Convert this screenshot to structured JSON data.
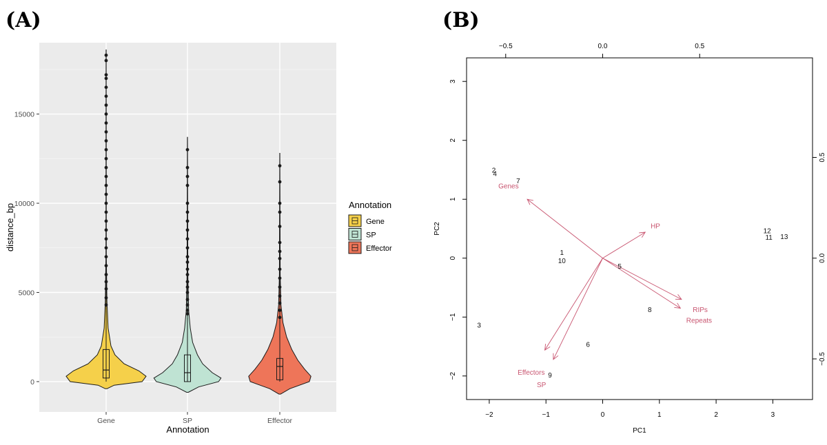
{
  "panels": {
    "a_label": "(A)",
    "b_label": "(B)"
  },
  "chart_data": [
    {
      "type": "violin",
      "title": "",
      "xlabel": "Annotation",
      "ylabel": "distance_bp",
      "categories": [
        "Gene",
        "SP",
        "Effector"
      ],
      "ylim": [
        -1700,
        19000
      ],
      "yticks": [
        0,
        5000,
        10000,
        15000
      ],
      "ytick_labels": [
        "0",
        "5000",
        "10000",
        "15000"
      ],
      "grid": true,
      "legend": {
        "title": "Annotation",
        "position": "right",
        "entries": [
          "Gene",
          "SP",
          "Effector"
        ]
      },
      "colors": {
        "Gene": "#f5d04a",
        "SP": "#bfe3d3",
        "Effector": "#ee7559"
      },
      "series": [
        {
          "name": "Gene",
          "box": {
            "q1": 200,
            "median": 650,
            "q3": 1800,
            "whisker_low": 0,
            "whisker_high": 4000
          },
          "violin": [
            [
              -400,
              0.02
            ],
            [
              -200,
              0.2
            ],
            [
              0,
              0.9
            ],
            [
              300,
              1.0
            ],
            [
              600,
              0.82
            ],
            [
              1000,
              0.45
            ],
            [
              1500,
              0.22
            ],
            [
              2000,
              0.12
            ],
            [
              3000,
              0.05
            ],
            [
              4500,
              0.02
            ],
            [
              7000,
              0.006
            ],
            [
              18600,
              0.002
            ]
          ],
          "outliers": [
            4300,
            4700,
            5200,
            5600,
            6000,
            6500,
            7000,
            7500,
            8000,
            8500,
            9000,
            9500,
            10000,
            10500,
            11000,
            11500,
            12000,
            12500,
            13000,
            13500,
            14000,
            14500,
            15000,
            15500,
            16000,
            16500,
            17000,
            17200,
            18000,
            18300
          ]
        },
        {
          "name": "SP",
          "box": {
            "q1": 0,
            "median": 500,
            "q3": 1500,
            "whisker_low": 0,
            "whisker_high": 3600
          },
          "violin": [
            [
              -600,
              0.02
            ],
            [
              -300,
              0.28
            ],
            [
              0,
              0.78
            ],
            [
              200,
              0.84
            ],
            [
              500,
              0.62
            ],
            [
              1000,
              0.38
            ],
            [
              1500,
              0.25
            ],
            [
              2200,
              0.13
            ],
            [
              3000,
              0.07
            ],
            [
              4000,
              0.03
            ],
            [
              6000,
              0.01
            ],
            [
              13700,
              0.002
            ]
          ],
          "outliers": [
            3800,
            4000,
            4300,
            4600,
            5000,
            5300,
            5600,
            6000,
            6300,
            6700,
            7000,
            7500,
            8000,
            8500,
            9000,
            9500,
            10000,
            11000,
            11500,
            12000,
            13000
          ]
        },
        {
          "name": "Effector",
          "box": {
            "q1": 100,
            "median": 850,
            "q3": 1300,
            "whisker_low": 0,
            "whisker_high": 3300
          },
          "violin": [
            [
              -700,
              0.02
            ],
            [
              -400,
              0.25
            ],
            [
              0,
              0.74
            ],
            [
              300,
              0.78
            ],
            [
              700,
              0.62
            ],
            [
              1200,
              0.45
            ],
            [
              1800,
              0.3
            ],
            [
              2500,
              0.17
            ],
            [
              3300,
              0.08
            ],
            [
              4300,
              0.03
            ],
            [
              6000,
              0.01
            ],
            [
              12800,
              0.002
            ]
          ],
          "outliers": [
            3600,
            4000,
            4400,
            4800,
            5300,
            5800,
            6300,
            6900,
            7300,
            7800,
            8700,
            9500,
            10000,
            11200,
            12100
          ]
        }
      ]
    },
    {
      "type": "scatter",
      "subtype": "biplot",
      "title": "",
      "xlabel": "PC1",
      "ylabel": "PC2",
      "xlim": [
        -2.4,
        3.7
      ],
      "ylim": [
        -2.4,
        3.4
      ],
      "xticks": [
        -2,
        -1,
        0,
        1,
        2,
        3
      ],
      "xtick_labels": [
        "−2",
        "−1",
        "0",
        "1",
        "2",
        "3"
      ],
      "yticks": [
        -2,
        -1,
        0,
        1,
        2,
        3
      ],
      "ytick_labels": [
        "−2",
        "−1",
        "0",
        "1",
        "2",
        "3"
      ],
      "top_xticks": [
        -0.5,
        0,
        0.5
      ],
      "top_xtick_labels": [
        "−0.5",
        "0.0",
        "0.5"
      ],
      "right_yticks": [
        -0.5,
        0,
        0.5
      ],
      "right_ytick_labels": [
        "−0.5",
        "0.0",
        "0.5"
      ],
      "points": [
        {
          "label": "2",
          "x": -1.92,
          "y": 1.5
        },
        {
          "label": "4",
          "x": -1.9,
          "y": 1.44
        },
        {
          "label": "7",
          "x": -1.49,
          "y": 1.32
        },
        {
          "label": "1",
          "x": -0.72,
          "y": 0.1
        },
        {
          "label": "10",
          "x": -0.72,
          "y": -0.04
        },
        {
          "label": "5",
          "x": 0.3,
          "y": -0.13
        },
        {
          "label": "8",
          "x": 0.83,
          "y": -0.87
        },
        {
          "label": "6",
          "x": -0.26,
          "y": -1.46
        },
        {
          "label": "9",
          "x": -0.93,
          "y": -1.98
        },
        {
          "label": "3",
          "x": -2.18,
          "y": -1.13
        },
        {
          "label": "12",
          "x": 2.9,
          "y": 0.47
        },
        {
          "label": "11",
          "x": 2.93,
          "y": 0.36
        },
        {
          "label": "13",
          "x": 3.2,
          "y": 0.37
        }
      ],
      "loadings": [
        {
          "label": "Genes",
          "x": -1.33,
          "y": 1.0,
          "lx": -1.66,
          "ly": 1.23
        },
        {
          "label": "HP",
          "x": 0.75,
          "y": 0.44,
          "lx": 0.93,
          "ly": 0.55
        },
        {
          "label": "RIPs",
          "x": 1.39,
          "y": -0.7,
          "lx": 1.72,
          "ly": -0.87
        },
        {
          "label": "Repeats",
          "x": 1.37,
          "y": -0.85,
          "lx": 1.7,
          "ly": -1.05
        },
        {
          "label": "Effectors",
          "x": -1.02,
          "y": -1.56,
          "lx": -1.26,
          "ly": -1.93
        },
        {
          "label": "SP",
          "x": -0.87,
          "y": -1.72,
          "lx": -1.08,
          "ly": -2.14
        }
      ],
      "colors": {
        "arrow": "#c8546f",
        "points": "#111111"
      }
    }
  ]
}
